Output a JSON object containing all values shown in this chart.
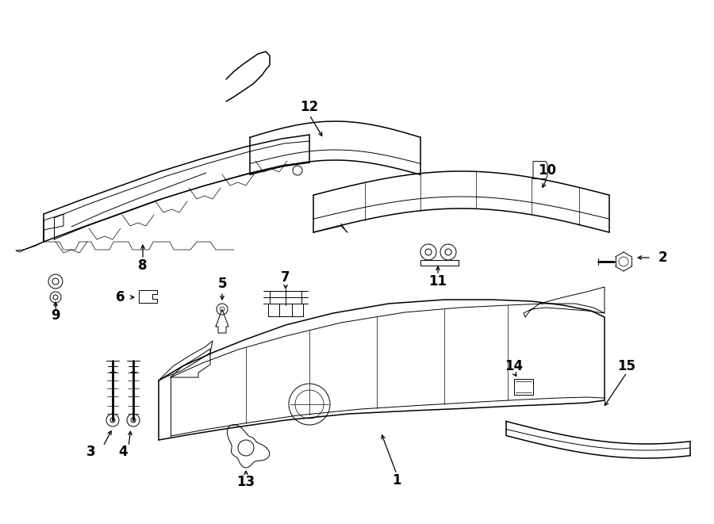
{
  "bg": "#ffffff",
  "lc": "#000000",
  "figw": 9.0,
  "figh": 6.61,
  "dpi": 100,
  "lw_main": 1.1,
  "lw_thin": 0.7,
  "lw_fine": 0.5,
  "label_fs": 12
}
